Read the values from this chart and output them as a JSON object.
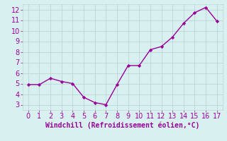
{
  "x": [
    0,
    1,
    2,
    3,
    4,
    5,
    6,
    7,
    8,
    9,
    10,
    11,
    12,
    13,
    14,
    15,
    16,
    17
  ],
  "y": [
    4.9,
    4.9,
    5.5,
    5.2,
    5.0,
    3.7,
    3.2,
    3.0,
    4.9,
    6.7,
    6.7,
    8.2,
    8.5,
    9.4,
    10.7,
    11.7,
    12.2,
    10.9
  ],
  "line_color": "#990099",
  "marker": "D",
  "marker_size": 2.2,
  "line_width": 1.0,
  "xlabel": "Windchill (Refroidissement éolien,°C)",
  "xlim": [
    -0.5,
    17.5
  ],
  "ylim": [
    2.5,
    12.5
  ],
  "xticks": [
    0,
    1,
    2,
    3,
    4,
    5,
    6,
    7,
    8,
    9,
    10,
    11,
    12,
    13,
    14,
    15,
    16,
    17
  ],
  "yticks": [
    3,
    4,
    5,
    6,
    7,
    8,
    9,
    10,
    11,
    12
  ],
  "background_color": "#d8f0f0",
  "grid_color": "#b8d8d8",
  "xlabel_color": "#990099",
  "xlabel_fontsize": 7,
  "tick_fontsize": 7,
  "tick_color": "#990099",
  "spine_color": "#b8d8d8"
}
